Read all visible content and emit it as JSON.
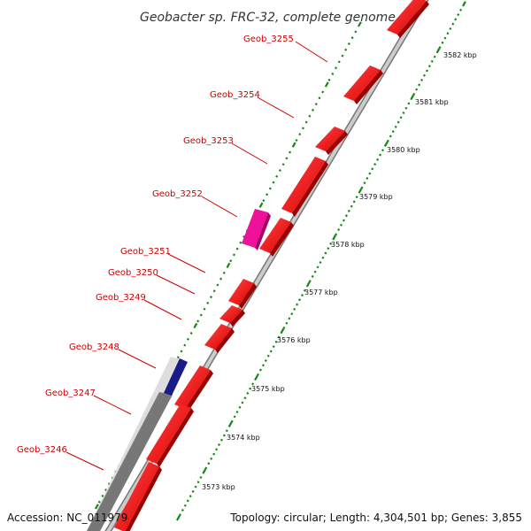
{
  "title": "Geobacter sp. FRC-32, complete genome",
  "accession_text": "Accession: NC_011979",
  "stats_text": "Topology: circular; Length: 4,304,501 bp; Genes: 3,855",
  "genes": [
    {
      "locus": "Geob_3255"
    },
    {
      "locus": "Geob_3254"
    },
    {
      "locus": "Geob_3253"
    },
    {
      "locus": "Geob_3252"
    },
    {
      "locus": "Geob_3251"
    },
    {
      "locus": "Geob_3250"
    },
    {
      "locus": "Geob_3249"
    },
    {
      "locus": "Geob_3248"
    },
    {
      "locus": "Geob_3247"
    },
    {
      "locus": "Geob_3246"
    }
  ],
  "scale_labels": [
    "3582 kbp",
    "3581 kbp",
    "3580 kbp",
    "3579 kbp",
    "3578 kbp",
    "3577 kbp",
    "3576 kbp",
    "3575 kbp",
    "3574 kbp",
    "3573 kbp"
  ],
  "colors": {
    "label": "#cc0000",
    "cds": "#ee0000",
    "highlight": "#ee1199",
    "dark_feature": "#1a1a88",
    "ruler_tick": "#118811",
    "backbone": "#aaaaaa"
  }
}
